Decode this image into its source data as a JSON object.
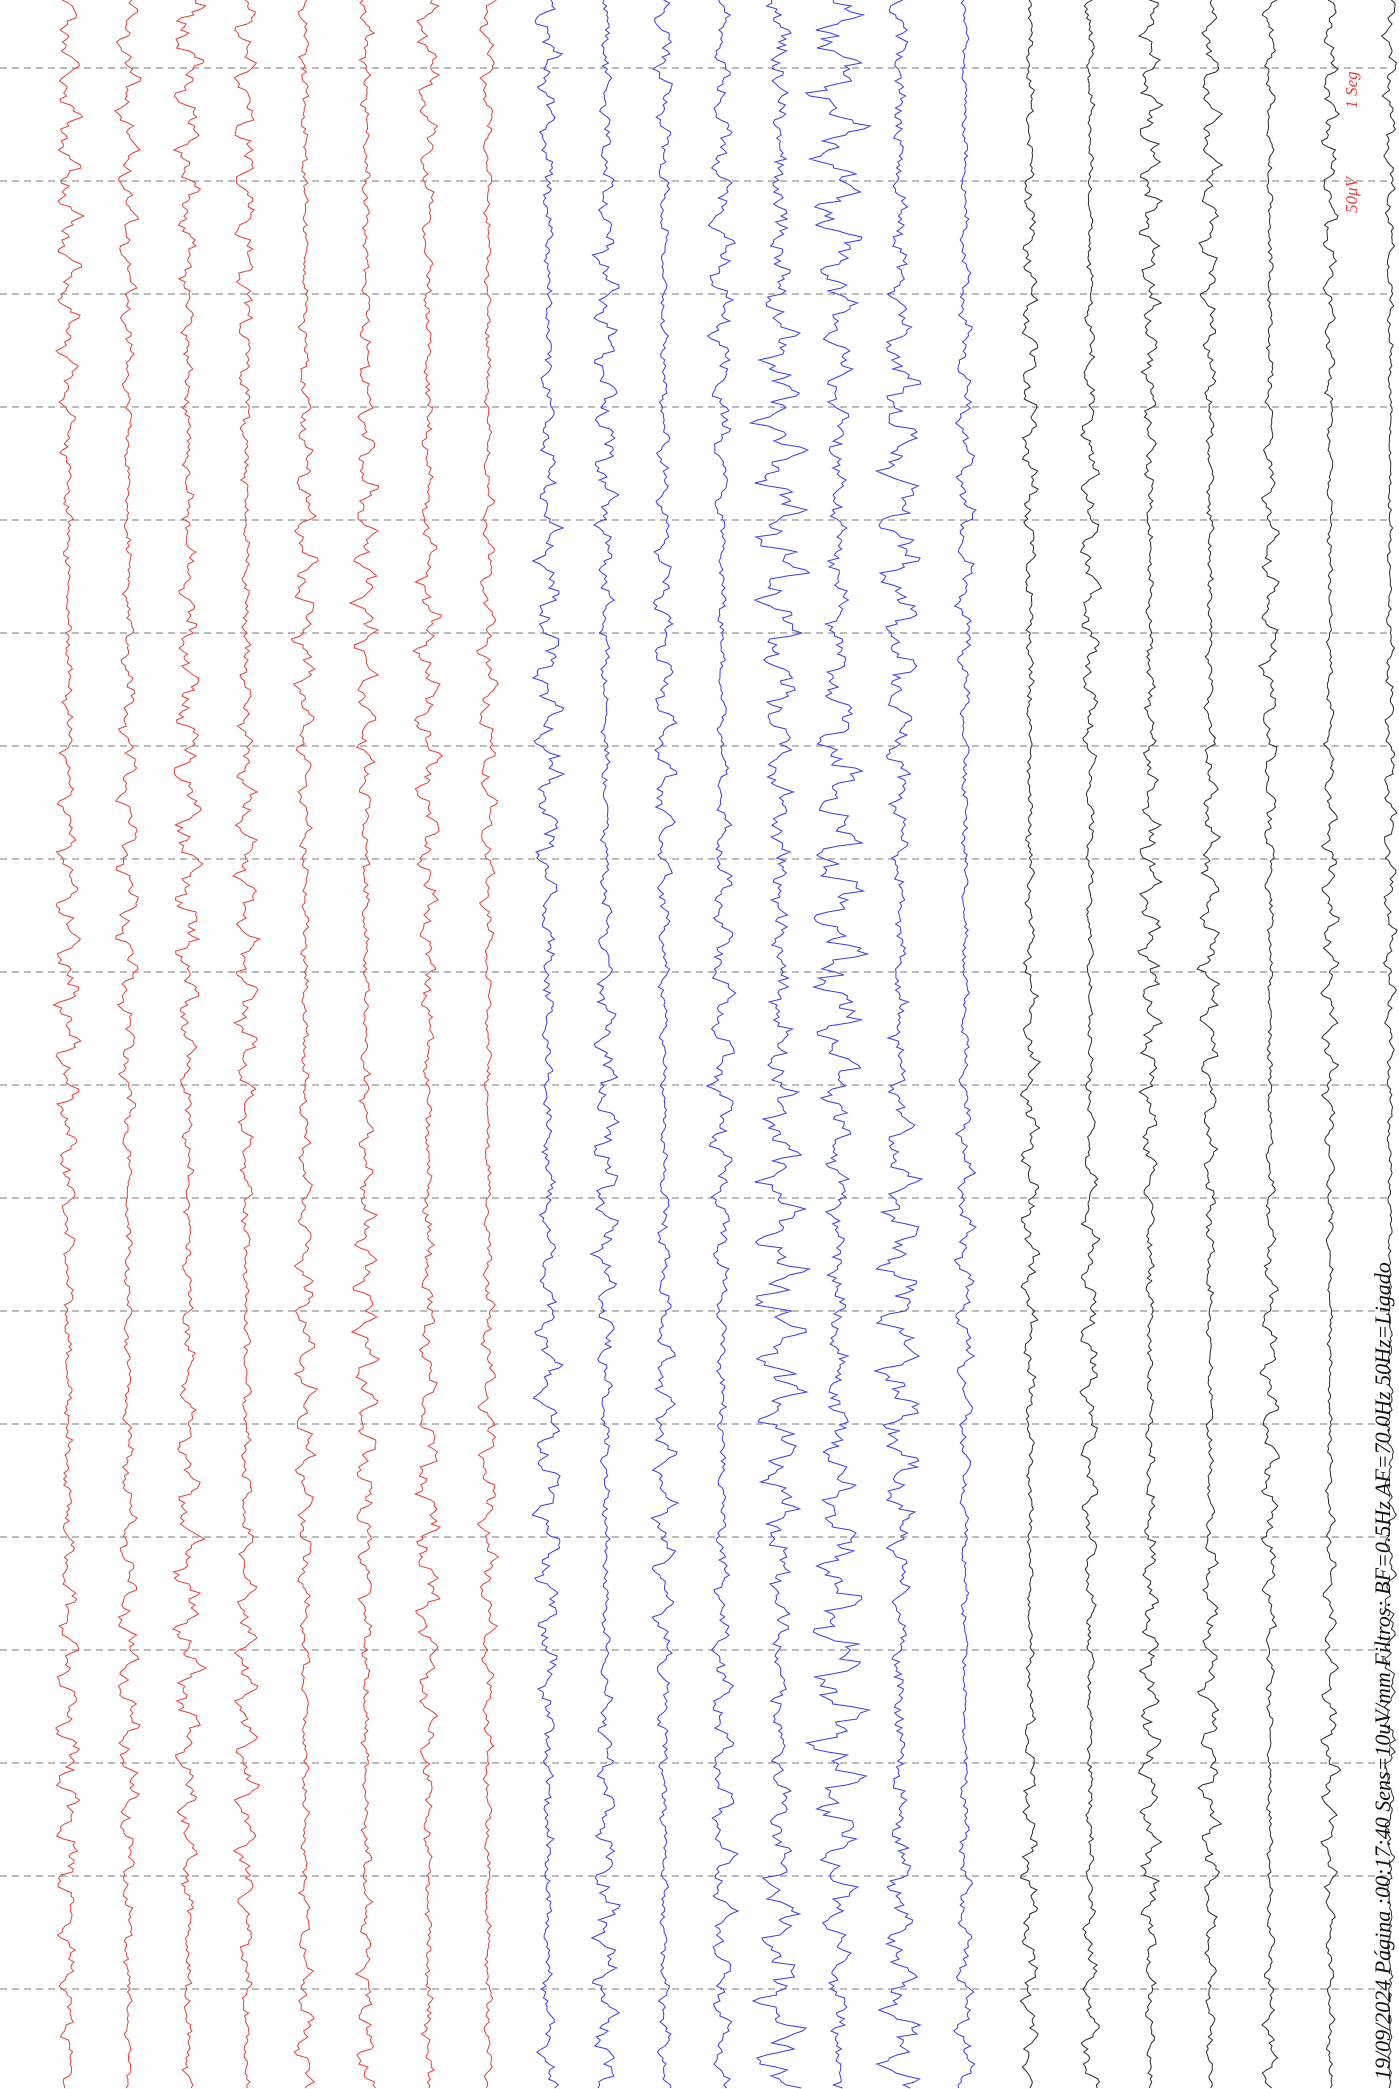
{
  "footer": {
    "text": "19/09/2024 Página :00:17:40 Sens=10uV/mm Filtros: BF=0.5Hz AF=70.0Hz 50Hz=Ligado"
  },
  "scale": {
    "time_label": "1 Seg",
    "amp_label": "50μV"
  },
  "chart_data": {
    "type": "line",
    "title": "",
    "xlabel": "",
    "ylabel": "",
    "orientation": "rotated-90",
    "grid": true,
    "grid_style": "dashed, one line per second",
    "channel_groups": [
      {
        "name": "",
        "color": "#e8403a",
        "channel_count": 8
      },
      {
        "name": "",
        "color": "#3b3de8",
        "channel_count": 8
      },
      {
        "name": "",
        "color": "#2b2b2b",
        "channel_count": 7
      }
    ],
    "seconds_shown": 19
  }
}
